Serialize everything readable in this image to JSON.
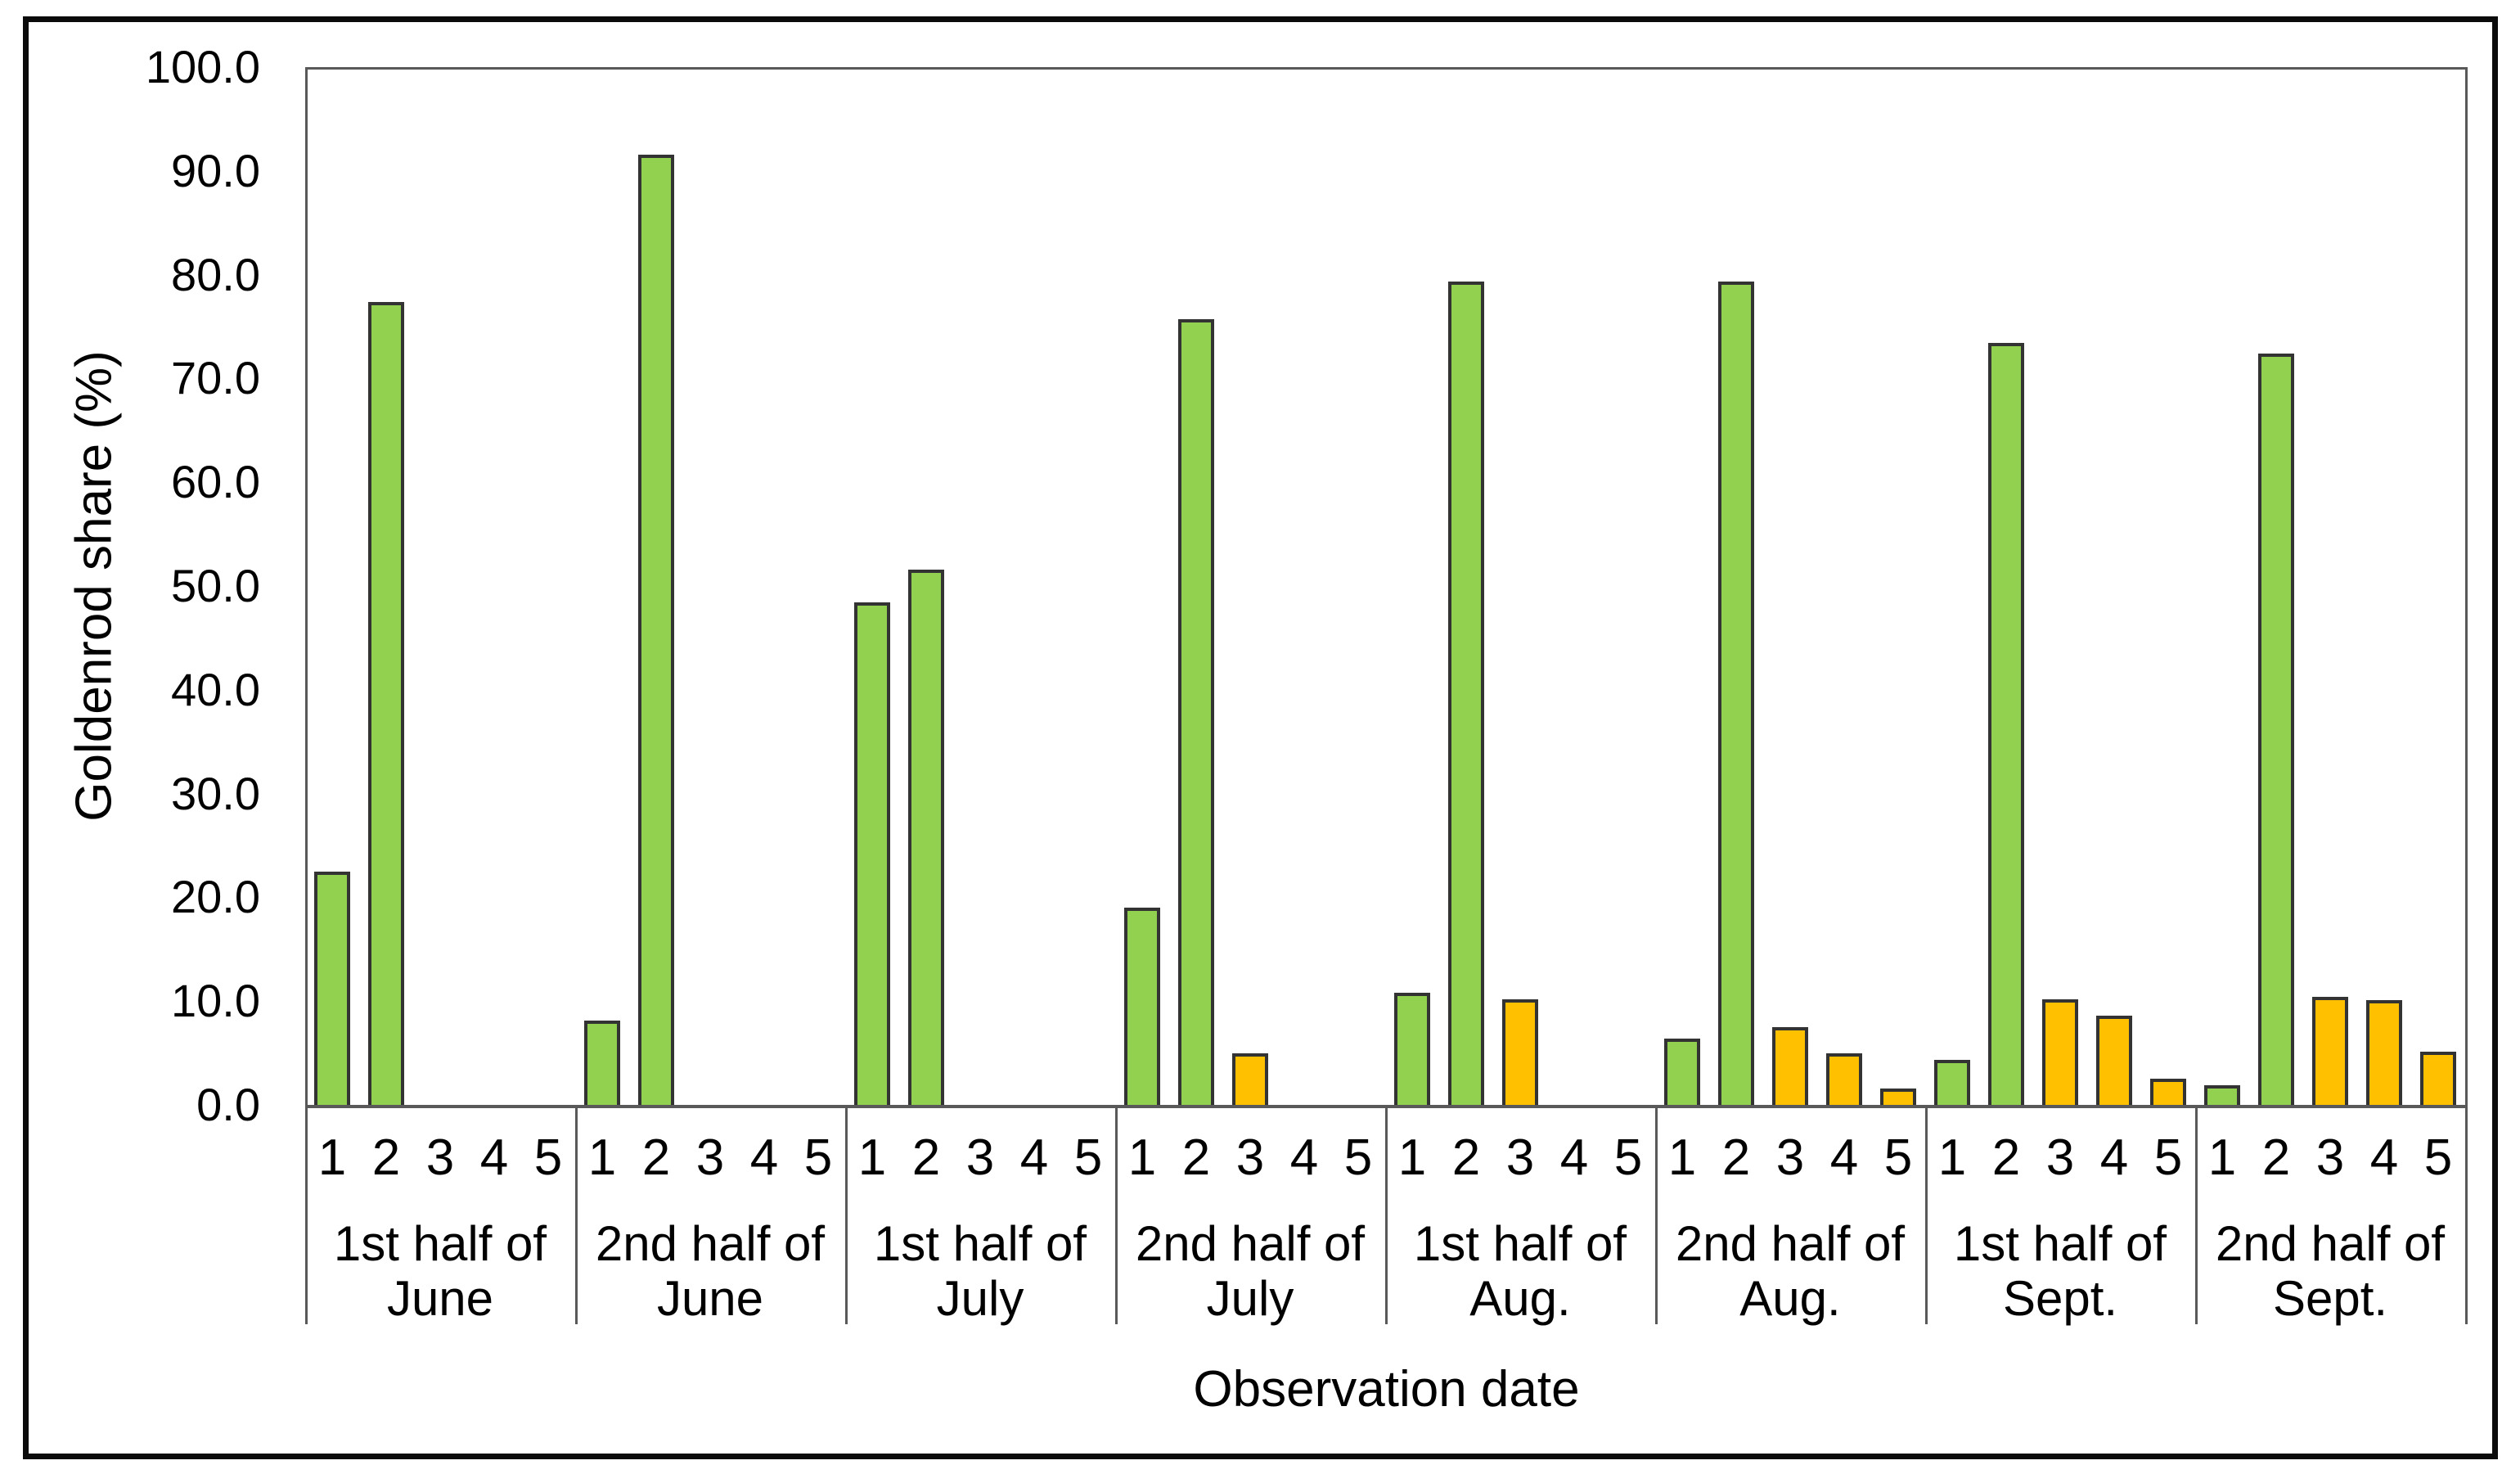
{
  "chart_data": {
    "type": "bar",
    "title": "",
    "xlabel": "Observation date",
    "ylabel": "Goldenrod share (%)",
    "ylim": [
      0,
      100
    ],
    "ytick_step": 10,
    "yticks": [
      "100.0",
      "90.0",
      "80.0",
      "70.0",
      "60.0",
      "50.0",
      "40.0",
      "30.0",
      "20.0",
      "10.0",
      "0.0"
    ],
    "grid": false,
    "legend": null,
    "slot_labels": [
      "1",
      "2",
      "3",
      "4",
      "5"
    ],
    "groups": [
      {
        "label_line1": "1st half of",
        "label_line2": "June",
        "values": [
          22.5,
          77.4,
          0,
          0,
          0
        ],
        "colors": [
          "green",
          "green",
          null,
          null,
          null
        ]
      },
      {
        "label_line1": "2nd half of",
        "label_line2": "June",
        "values": [
          8.1,
          91.6,
          0,
          0,
          0
        ],
        "colors": [
          "green",
          "green",
          null,
          null,
          null
        ]
      },
      {
        "label_line1": "1st half of",
        "label_line2": "July",
        "values": [
          48.4,
          51.6,
          0,
          0,
          0
        ],
        "colors": [
          "green",
          "green",
          null,
          null,
          null
        ]
      },
      {
        "label_line1": "2nd half of",
        "label_line2": "July",
        "values": [
          19.0,
          75.7,
          5.0,
          0,
          0
        ],
        "colors": [
          "green",
          "green",
          "orange",
          null,
          null
        ]
      },
      {
        "label_line1": "1st half of",
        "label_line2": "Aug.",
        "values": [
          10.8,
          79.3,
          10.2,
          0,
          0
        ],
        "colors": [
          "green",
          "green",
          "orange",
          null,
          null
        ]
      },
      {
        "label_line1": "2nd half of",
        "label_line2": "Aug.",
        "values": [
          6.4,
          79.3,
          7.5,
          5.0,
          1.6
        ],
        "colors": [
          "green",
          "green",
          "orange",
          "orange",
          "orange"
        ]
      },
      {
        "label_line1": "1st half of",
        "label_line2": "Sept.",
        "values": [
          4.3,
          73.4,
          10.2,
          8.6,
          2.5
        ],
        "colors": [
          "green",
          "green",
          "orange",
          "orange",
          "orange"
        ]
      },
      {
        "label_line1": "2nd half of",
        "label_line2": "Sept.",
        "values": [
          1.9,
          72.4,
          10.4,
          10.1,
          5.1
        ],
        "colors": [
          "green",
          "green",
          "orange",
          "orange",
          "orange"
        ]
      }
    ],
    "colors": {
      "green": "#92d050",
      "orange": "#ffc000",
      "bar_border": "#333333",
      "axis_line": "#595959",
      "figure_border": "#0b0b0b",
      "text": "#000000"
    }
  }
}
